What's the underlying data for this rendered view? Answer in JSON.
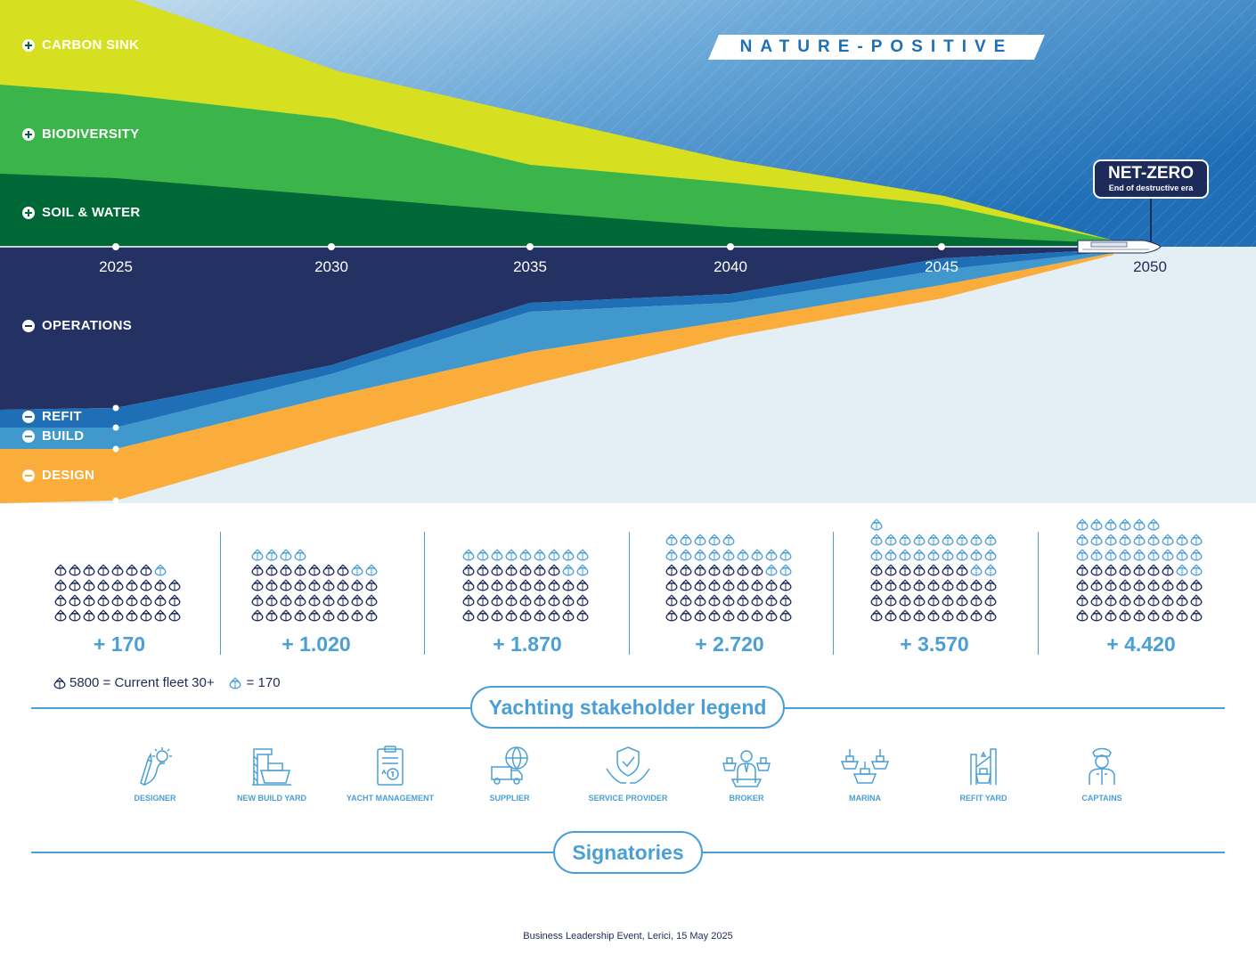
{
  "badge": {
    "nature_positive": "NATURE-POSITIVE",
    "net_zero_title": "NET-ZERO",
    "net_zero_subtitle": "End of destructive era"
  },
  "positive_layers": [
    {
      "label": "CARBON SINK",
      "sign": "plus",
      "color": "#d6e021"
    },
    {
      "label": "BIODIVERSITY",
      "sign": "plus",
      "color": "#3bb54a"
    },
    {
      "label": "SOIL & WATER",
      "sign": "plus",
      "color": "#006837"
    }
  ],
  "negative_layers": [
    {
      "label": "OPERATIONS",
      "sign": "minus",
      "color": "#243163"
    },
    {
      "label": "REFIT",
      "sign": "minus",
      "color": "#1f6fb7"
    },
    {
      "label": "BUILD",
      "sign": "minus",
      "color": "#4198cd"
    },
    {
      "label": "DESIGN",
      "sign": "minus",
      "color": "#fbad3c"
    }
  ],
  "timeline_years": [
    "2025",
    "2030",
    "2035",
    "2040",
    "2045",
    "2050"
  ],
  "fleet_counts": [
    {
      "label": "+ 170",
      "new_units": 1
    },
    {
      "label": "+ 1.020",
      "new_units": 6
    },
    {
      "label": "+ 1.870",
      "new_units": 11
    },
    {
      "label": "+ 2.720",
      "new_units": 16
    },
    {
      "label": "+ 3.570",
      "new_units": 21
    },
    {
      "label": "+ 4.420",
      "new_units": 26
    }
  ],
  "fleet_legend": {
    "current_text": "5800 = Current fleet 30+",
    "unit_text": "= 170"
  },
  "stakeholder_title": "Yachting stakeholder legend",
  "stakeholders": [
    {
      "label": "DESIGNER",
      "icon": "designer-icon"
    },
    {
      "label": "NEW BUILD YARD",
      "icon": "new-build-yard-icon"
    },
    {
      "label": "YACHT MANAGEMENT",
      "icon": "yacht-management-icon"
    },
    {
      "label": "SUPPLIER",
      "icon": "supplier-icon"
    },
    {
      "label": "SERVICE PROVIDER",
      "icon": "service-provider-icon"
    },
    {
      "label": "BROKER",
      "icon": "broker-icon"
    },
    {
      "label": "MARINA",
      "icon": "marina-icon"
    },
    {
      "label": "REFIT YARD",
      "icon": "refit-yard-icon"
    },
    {
      "label": "CAPTAINS",
      "icon": "captain-icon"
    }
  ],
  "signatories_title": "Signatories",
  "footer": "Business Leadership Event, Lerici, 15 May 2025",
  "colors": {
    "dark_navy": "#1d2b5b",
    "accent_blue": "#4a9fd5",
    "sky_light": "#e4eef5"
  }
}
